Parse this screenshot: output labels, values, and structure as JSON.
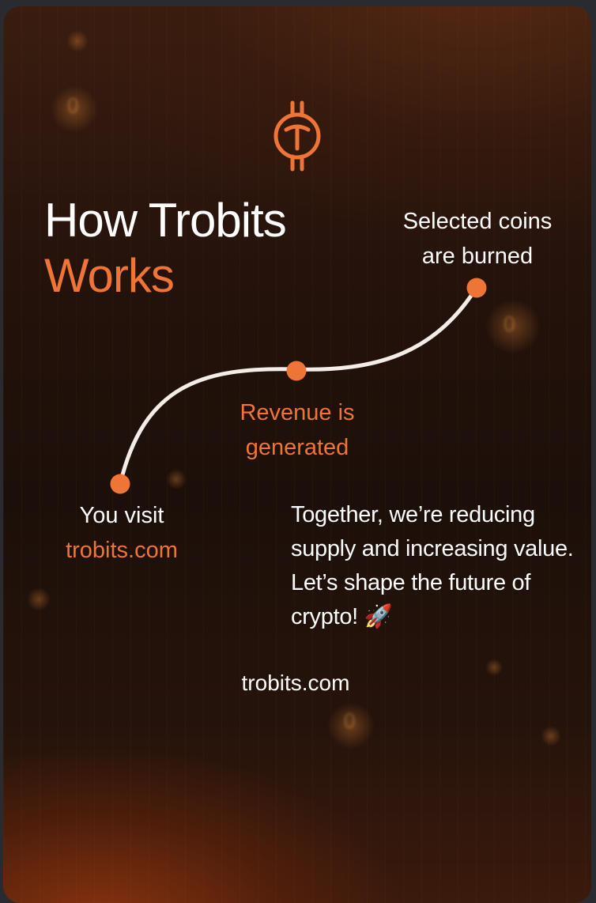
{
  "card": {
    "title_line1": "How Trobits",
    "title_line2": "Works",
    "logo_icon": "trobits-coin-logo-icon",
    "steps": [
      {
        "line1": "You visit",
        "line2": "trobits.com"
      },
      {
        "line1": "Revenue is",
        "line2": "generated"
      },
      {
        "line1": "Selected coins",
        "line2": "are burned"
      }
    ],
    "message": "Together, we’re reducing supply and increasing value. Let’s shape the future of crypto! 🚀",
    "footer_url": "trobits.com"
  },
  "colors": {
    "accent": "#ee7536",
    "text": "#ffffff",
    "curve": "#f4ece6"
  }
}
